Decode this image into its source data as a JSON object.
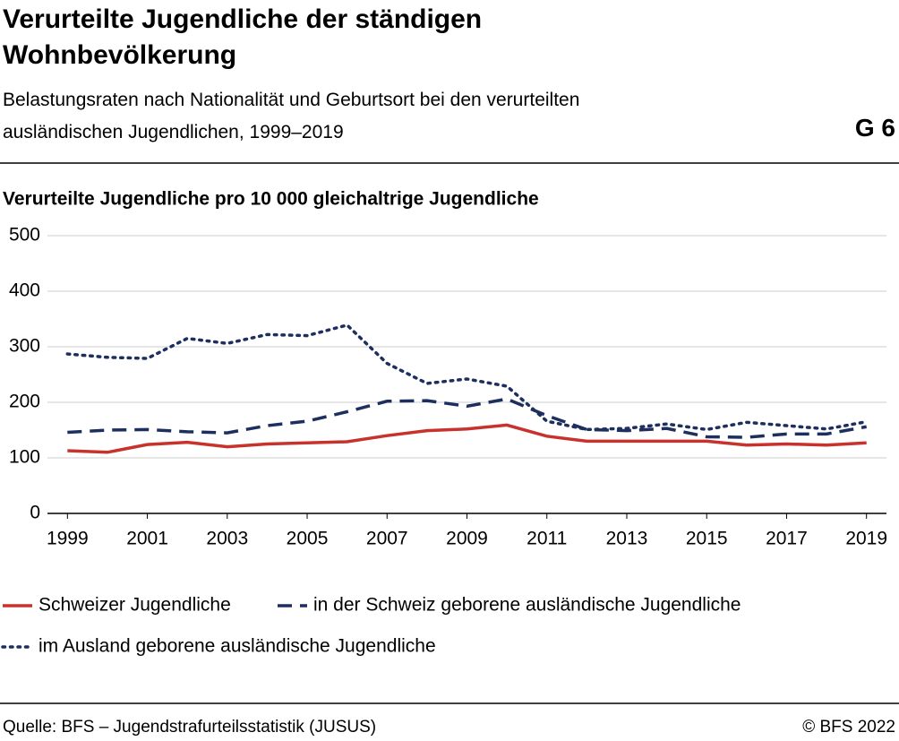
{
  "chart_data": {
    "type": "line",
    "title": "Verurteilte Jugendliche der ständigen Wohnbevölkerung",
    "subtitle": "Belastungsraten nach Nationalität und Geburtsort bei den verurteilten ausländischen Jugendlichen, 1999–2019",
    "figure_label": "G 6",
    "y_axis_label": "Verurteilte Jugendliche pro 10 000 gleichaltrige Jugendliche",
    "source": "Quelle: BFS – Jugendstrafurteilsstatistik (JUSUS)",
    "copyright": "© BFS 2022",
    "x": [
      1999,
      2000,
      2001,
      2002,
      2003,
      2004,
      2005,
      2006,
      2007,
      2008,
      2009,
      2010,
      2011,
      2012,
      2013,
      2014,
      2015,
      2016,
      2017,
      2018,
      2019
    ],
    "xlim": [
      1998.5,
      2019.5
    ],
    "xticks": [
      1999,
      2001,
      2003,
      2005,
      2007,
      2009,
      2011,
      2013,
      2015,
      2017,
      2019
    ],
    "ylim": [
      0,
      500
    ],
    "yticks": [
      0,
      100,
      200,
      300,
      400,
      500
    ],
    "grid": true,
    "legend": "bottom",
    "series": [
      {
        "name": "Schweizer Jugendliche",
        "color": "#c8322c",
        "style": "solid",
        "values": [
          113,
          110,
          124,
          128,
          120,
          125,
          127,
          129,
          140,
          149,
          152,
          159,
          139,
          130,
          130,
          130,
          130,
          123,
          125,
          123,
          127
        ]
      },
      {
        "name": "in der Schweiz geborene ausländische Jugendliche",
        "color": "#1d2f5e",
        "style": "dashed",
        "values": [
          146,
          150,
          151,
          147,
          145,
          158,
          166,
          183,
          202,
          203,
          193,
          206,
          176,
          151,
          149,
          153,
          138,
          137,
          143,
          143,
          156
        ]
      },
      {
        "name": "im Ausland geborene ausländische Jugendliche",
        "color": "#1d2f5e",
        "style": "dotted",
        "values": [
          287,
          281,
          279,
          315,
          306,
          322,
          320,
          339,
          270,
          234,
          242,
          229,
          166,
          151,
          153,
          161,
          151,
          164,
          158,
          152,
          165
        ]
      }
    ]
  }
}
